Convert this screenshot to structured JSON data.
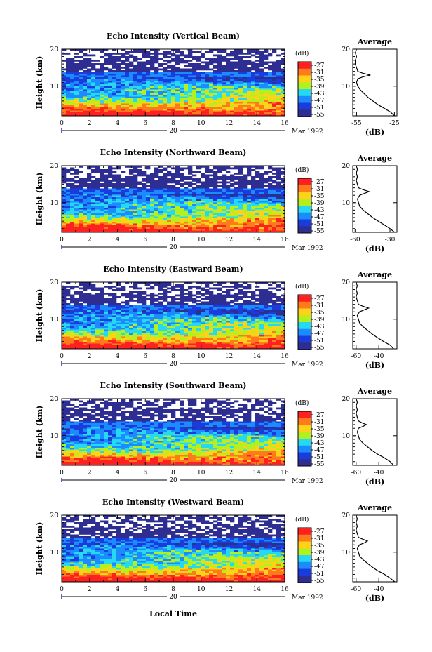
{
  "figure": {
    "xlabel": "Local Time",
    "colorbar_label": "(dB)",
    "colorbar_ticks": [
      "-27",
      "-31",
      "-35",
      "-39",
      "-43",
      "-47",
      "-51",
      "-55"
    ],
    "colors": [
      "#ff2020",
      "#ff7a1a",
      "#ffd21a",
      "#b4f01e",
      "#26d8f0",
      "#1a8cff",
      "#1a3cdc",
      "#2e2e92"
    ]
  },
  "chart_data": [
    {
      "type": "heatmap",
      "title": "Echo Intensity (Vertical Beam)",
      "ylabel": "Height (km)",
      "x_ticks": [
        "0",
        "2",
        "4",
        "6",
        "8",
        "10",
        "12",
        "14",
        "16"
      ],
      "y_ticks": [
        "20",
        "10"
      ],
      "xlim": [
        0,
        16
      ],
      "ylim": [
        2,
        20
      ],
      "date_tick": "20",
      "date_label": "Mar 1992",
      "tropopause_km": 13,
      "average": {
        "title": "Average",
        "xlabel": "(dB)",
        "x_ticks": [
          "-55",
          "-25"
        ],
        "y_ticks": [
          "20",
          "10"
        ],
        "xlim": [
          -58,
          -23
        ],
        "heights": [
          2,
          3,
          4,
          5,
          6,
          7,
          8,
          9,
          10,
          11,
          12,
          12.5,
          13,
          13.5,
          14,
          15,
          16,
          17,
          18,
          19,
          20
        ],
        "values": [
          -25,
          -28,
          -33,
          -38,
          -42,
          -46,
          -49,
          -52,
          -54,
          -55,
          -54,
          -50,
          -44,
          -50,
          -54,
          -55,
          -56,
          -56,
          -55,
          -56,
          -55
        ]
      }
    },
    {
      "type": "heatmap",
      "title": "Echo Intensity (Northward Beam)",
      "ylabel": "Height (km)",
      "x_ticks": [
        "0",
        "2",
        "4",
        "6",
        "8",
        "10",
        "12",
        "14",
        "16"
      ],
      "y_ticks": [
        "20",
        "10"
      ],
      "xlim": [
        0,
        16
      ],
      "ylim": [
        2,
        20
      ],
      "date_tick": "20",
      "date_label": "Mar 1992",
      "tropopause_km": 13,
      "average": {
        "title": "Average",
        "xlabel": "(dB)",
        "x_ticks": [
          "-60",
          "-30"
        ],
        "y_ticks": [
          "20",
          "10"
        ],
        "xlim": [
          -62,
          -24
        ],
        "heights": [
          2,
          3,
          4,
          5,
          6,
          7,
          8,
          9,
          10,
          11,
          12,
          12.5,
          13,
          13.5,
          14,
          15,
          16,
          17,
          18,
          19,
          20
        ],
        "values": [
          -26,
          -30,
          -35,
          -40,
          -45,
          -49,
          -53,
          -56,
          -57,
          -58,
          -56,
          -52,
          -48,
          -53,
          -57,
          -58,
          -59,
          -58,
          -59,
          -58,
          -59
        ]
      }
    },
    {
      "type": "heatmap",
      "title": "Echo Intensity (Eastward Beam)",
      "ylabel": "Height (km)",
      "x_ticks": [
        "0",
        "2",
        "4",
        "6",
        "8",
        "10",
        "12",
        "14",
        "16"
      ],
      "y_ticks": [
        "20",
        "10"
      ],
      "xlim": [
        0,
        16
      ],
      "ylim": [
        2,
        20
      ],
      "date_tick": "20",
      "date_label": "Mar 1992",
      "tropopause_km": 13,
      "average": {
        "title": "Average",
        "xlabel": "(dB)",
        "x_ticks": [
          "-60",
          "-40"
        ],
        "y_ticks": [
          "20",
          "10"
        ],
        "xlim": [
          -63,
          -24
        ],
        "heights": [
          2,
          3,
          4,
          5,
          6,
          7,
          8,
          9,
          10,
          11,
          12,
          12.5,
          13,
          13.5,
          14,
          15,
          16,
          17,
          18,
          19,
          20
        ],
        "values": [
          -27,
          -30,
          -36,
          -41,
          -46,
          -50,
          -54,
          -57,
          -58,
          -59,
          -57,
          -53,
          -49,
          -54,
          -58,
          -59,
          -60,
          -59,
          -60,
          -59,
          -60
        ]
      }
    },
    {
      "type": "heatmap",
      "title": "Echo Intensity (Southward Beam)",
      "ylabel": "Height (km)",
      "x_ticks": [
        "0",
        "2",
        "4",
        "6",
        "8",
        "10",
        "12",
        "14",
        "16"
      ],
      "y_ticks": [
        "20",
        "10"
      ],
      "xlim": [
        0,
        16
      ],
      "ylim": [
        2,
        20
      ],
      "date_tick": "20",
      "date_label": "Mar 1992",
      "tropopause_km": 13,
      "average": {
        "title": "Average",
        "xlabel": "(dB)",
        "x_ticks": [
          "-60",
          "-40"
        ],
        "y_ticks": [
          "20",
          "10"
        ],
        "xlim": [
          -63,
          -24
        ],
        "heights": [
          2,
          3,
          4,
          5,
          6,
          7,
          8,
          9,
          10,
          11,
          12,
          12.5,
          13,
          13.5,
          14,
          15,
          16,
          17,
          18,
          19,
          20
        ],
        "values": [
          -27,
          -30,
          -35,
          -41,
          -46,
          -50,
          -54,
          -57,
          -58,
          -59,
          -58,
          -54,
          -51,
          -55,
          -58,
          -59,
          -60,
          -59,
          -60,
          -59,
          -60
        ]
      }
    },
    {
      "type": "heatmap",
      "title": "Echo Intensity (Westward Beam)",
      "ylabel": "Height (km)",
      "x_ticks": [
        "0",
        "2",
        "4",
        "6",
        "8",
        "10",
        "12",
        "14",
        "16"
      ],
      "y_ticks": [
        "20",
        "10"
      ],
      "xlim": [
        0,
        16
      ],
      "ylim": [
        2,
        20
      ],
      "date_tick": "20",
      "date_label": "Mar 1992",
      "tropopause_km": 13,
      "average": {
        "title": "Average",
        "xlabel": "(dB)",
        "x_ticks": [
          "-60",
          "-40"
        ],
        "y_ticks": [
          "20",
          "10"
        ],
        "xlim": [
          -63,
          -24
        ],
        "heights": [
          2,
          3,
          4,
          5,
          6,
          7,
          8,
          9,
          10,
          11,
          12,
          12.5,
          13,
          13.5,
          14,
          15,
          16,
          17,
          18,
          19,
          20
        ],
        "values": [
          -26,
          -30,
          -35,
          -41,
          -46,
          -50,
          -54,
          -57,
          -58,
          -59,
          -57,
          -53,
          -50,
          -54,
          -58,
          -59,
          -60,
          -59,
          -60,
          -59,
          -60
        ]
      }
    }
  ]
}
